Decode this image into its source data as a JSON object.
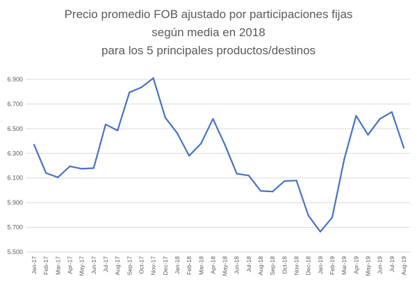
{
  "chart_data": {
    "type": "line",
    "title_lines": [
      "Precio promedio FOB ajustado por participaciones fijas",
      "según media en 2018",
      "para los 5 principales productos/destinos"
    ],
    "xlabel": "",
    "ylabel": "",
    "ylim": [
      5500,
      6900
    ],
    "yticks": [
      5500,
      5700,
      5900,
      6100,
      6300,
      6500,
      6700,
      6900
    ],
    "ytick_labels": [
      "5.500",
      "5.700",
      "5.900",
      "6.100",
      "6.300",
      "6.500",
      "6.700",
      "6.900"
    ],
    "grid": true,
    "legend": "none",
    "line_color": "#4472c4",
    "grid_color": "#d9d9d9",
    "categories": [
      "Jan-17",
      "Feb-17",
      "Mar-17",
      "Apr-17",
      "May-17",
      "Jun-17",
      "Jul-17",
      "Aug-17",
      "Sep-17",
      "Oct-17",
      "Nov-17",
      "Dec-17",
      "Jan-18",
      "Feb-18",
      "Mar-18",
      "Apr-18",
      "May-18",
      "Jun-18",
      "Jul-18",
      "Aug-18",
      "Sep-18",
      "Oct-18",
      "Nov-18",
      "Dec-18",
      "Jan-19",
      "Feb-19",
      "Mar-19",
      "Apr-19",
      "May-19",
      "Jun-19",
      "Jul-19",
      "Aug-19"
    ],
    "series": [
      {
        "values": [
          6370,
          6140,
          6105,
          6195,
          6175,
          6180,
          6535,
          6485,
          6795,
          6835,
          6910,
          6590,
          6465,
          6280,
          6380,
          6580,
          6370,
          6135,
          6120,
          5995,
          5990,
          6075,
          6080,
          5795,
          5665,
          5780,
          6250,
          6605,
          6450,
          6580,
          6635,
          6345
        ]
      }
    ]
  }
}
